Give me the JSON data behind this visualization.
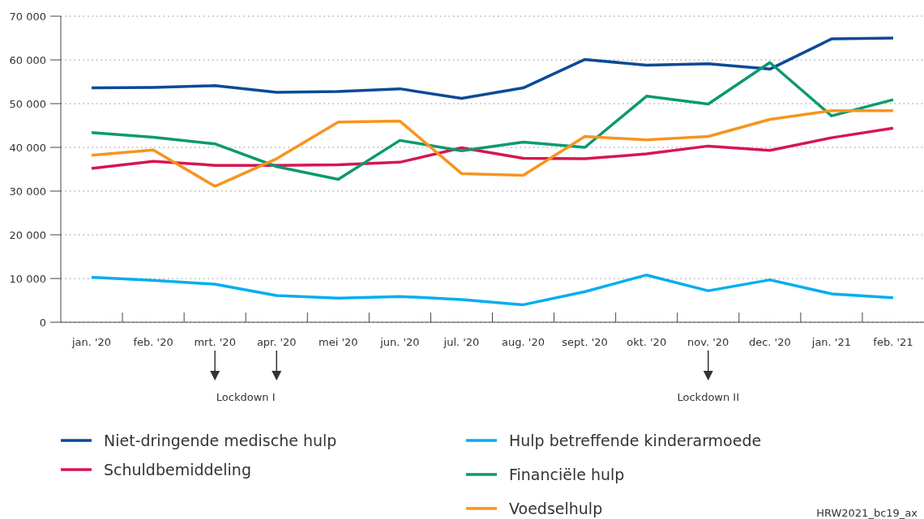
{
  "chart_data": {
    "type": "line",
    "categories": [
      "jan. '20",
      "feb. '20",
      "mrt. '20",
      "apr. '20",
      "mei '20",
      "jun. '20",
      "jul. '20",
      "aug. '20",
      "sept. '20",
      "okt. '20",
      "nov. '20",
      "dec. '20",
      "jan. '21",
      "feb. '21"
    ],
    "series": [
      {
        "name": "Niet-dringende medische hulp",
        "color": "#0a4a96",
        "values": [
          53600,
          53700,
          54100,
          52600,
          52800,
          53400,
          51200,
          53600,
          60100,
          58800,
          59100,
          57900,
          64800,
          65000
        ]
      },
      {
        "name": "Schuldbemiddeling",
        "color": "#d6174f",
        "values": [
          35200,
          36800,
          35900,
          35900,
          36000,
          36600,
          39900,
          37500,
          37400,
          38500,
          40300,
          39300,
          42200,
          44400
        ]
      },
      {
        "name": "Hulp betreffende kinderarmoede",
        "color": "#00aeef",
        "values": [
          10300,
          9600,
          8700,
          6100,
          5500,
          5900,
          5200,
          4000,
          7000,
          10800,
          7200,
          9700,
          6500,
          5600
        ]
      },
      {
        "name": "Financiële hulp",
        "color": "#0a9a6e",
        "values": [
          43400,
          42300,
          40800,
          35600,
          32700,
          41600,
          39200,
          41200,
          40000,
          51700,
          49900,
          59400,
          47200,
          50900
        ]
      },
      {
        "name": "Voedselhulp",
        "color": "#f7941d",
        "values": [
          38200,
          39400,
          31100,
          37400,
          45800,
          46000,
          34000,
          33600,
          42500,
          41700,
          42500,
          46400,
          48400,
          48400
        ]
      }
    ],
    "ylim": [
      0,
      70000
    ],
    "yticks": [
      0,
      {
        "value": 10000,
        "label": "10 000"
      },
      {
        "value": 20000,
        "label": "20 000"
      },
      {
        "value": 30000,
        "label": "30 000"
      },
      {
        "value": 40000,
        "label": "40 000"
      },
      {
        "value": 50000,
        "label": "50 000"
      },
      {
        "value": 60000,
        "label": "60 000"
      },
      {
        "value": 70000,
        "label": "70 000"
      }
    ],
    "grid": "y",
    "legend": "bottom",
    "marker": "none",
    "line_style": "solid",
    "annotations": [
      "Lockdown I",
      "Lockdown II",
      "HRW2021_bc19_ax"
    ]
  }
}
